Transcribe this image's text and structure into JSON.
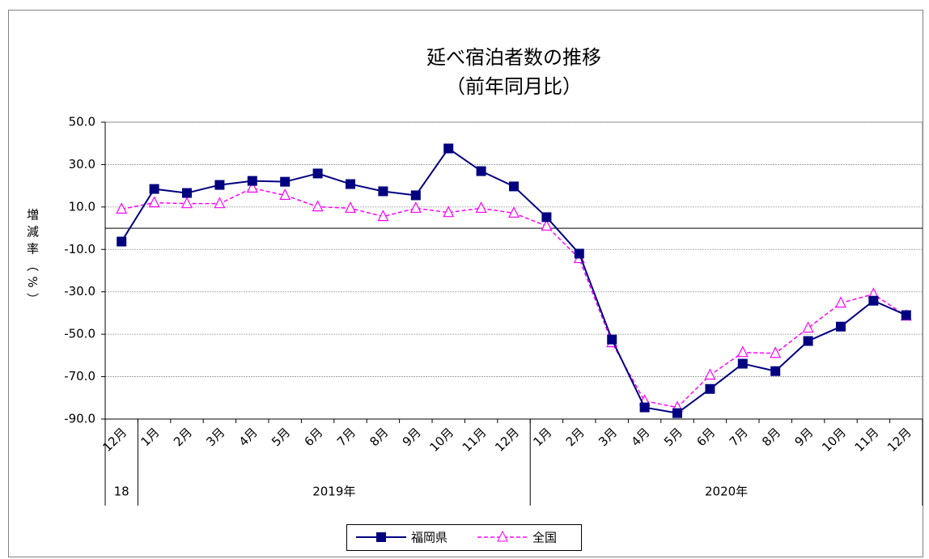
{
  "chart_data": {
    "type": "line",
    "title": "延べ宿泊者数の推移",
    "subtitle": "（前年同月比）",
    "y_label": "増減率（%）",
    "categories": [
      "12月",
      "1月",
      "2月",
      "3月",
      "4月",
      "5月",
      "6月",
      "7月",
      "8月",
      "9月",
      "10月",
      "11月",
      "12月",
      "1月",
      "2月",
      "3月",
      "4月",
      "5月",
      "6月",
      "7月",
      "8月",
      "9月",
      "10月",
      "11月",
      "12月"
    ],
    "x_groups": [
      "18",
      "2019年",
      "2020年"
    ],
    "series": [
      {
        "name": "福岡県",
        "color": "#000080",
        "marker": "square",
        "dash": false,
        "values": [
          -6.3,
          18.5,
          16.6,
          20.4,
          22.3,
          21.9,
          25.8,
          20.8,
          17.4,
          15.5,
          37.6,
          26.9,
          19.7,
          5.2,
          -12.0,
          -52.5,
          -84.5,
          -87.2,
          -75.8,
          -63.9,
          -67.4,
          -53.2,
          -46.4,
          -34.2,
          -41.0
        ]
      },
      {
        "name": "全国",
        "color": "#ff00ff",
        "marker": "triangle",
        "dash": true,
        "values": [
          9.0,
          12.0,
          11.6,
          11.6,
          18.9,
          15.5,
          10.1,
          9.4,
          5.5,
          9.4,
          7.4,
          9.4,
          7.1,
          1.0,
          -14.3,
          -54.0,
          -81.5,
          -84.5,
          -69.3,
          -58.6,
          -59.0,
          -47.1,
          -35.3,
          -31.1,
          -41.4
        ]
      }
    ],
    "ylim": [
      -90,
      50
    ],
    "yticks": [
      {
        "value": -90,
        "label": "-90.0"
      },
      {
        "value": -70,
        "label": "-70.0"
      },
      {
        "value": -50,
        "label": "-50.0"
      },
      {
        "value": -30,
        "label": "-30.0"
      },
      {
        "value": -10,
        "label": "-10.0"
      },
      {
        "value": 10,
        "label": "10.0"
      },
      {
        "value": 30,
        "label": "30.0"
      },
      {
        "value": 50,
        "label": "50.0"
      }
    ],
    "grid": true,
    "legend": "bottom"
  }
}
